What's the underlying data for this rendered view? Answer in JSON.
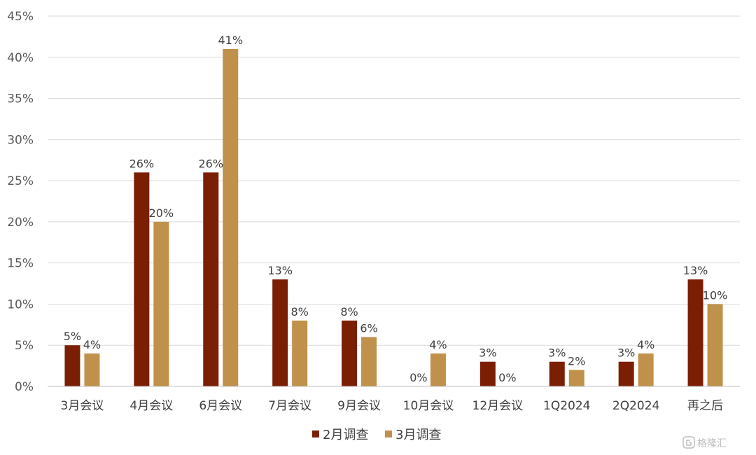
{
  "chart_data": {
    "type": "bar",
    "categories": [
      "3月会议",
      "4月会议",
      "6月会议",
      "7月会议",
      "9月会议",
      "10月会议",
      "12月会议",
      "1Q2024",
      "2Q2024",
      "再之后"
    ],
    "series": [
      {
        "name": "2月调查",
        "color": "#7B1F04",
        "values": [
          5,
          26,
          26,
          13,
          8,
          0,
          3,
          3,
          3,
          13
        ],
        "labels": [
          "5%",
          "26%",
          "26%",
          "13%",
          "8%",
          "0%",
          "3%",
          "3%",
          "3%",
          "13%"
        ]
      },
      {
        "name": "3月调查",
        "color": "#C0914B",
        "values": [
          4,
          20,
          41,
          8,
          6,
          4,
          0,
          2,
          4,
          10
        ],
        "labels": [
          "4%",
          "20%",
          "41%",
          "8%",
          "6%",
          "4%",
          "0%",
          "2%",
          "4%",
          "10%"
        ]
      }
    ],
    "y_ticks": [
      "0%",
      "5%",
      "10%",
      "15%",
      "20%",
      "25%",
      "30%",
      "35%",
      "40%",
      "45%"
    ],
    "ylim": [
      0,
      45
    ],
    "grid": true,
    "legend_position": "bottom"
  },
  "watermark": {
    "icon": "gelonghui-logo-icon",
    "text": "格隆汇"
  }
}
